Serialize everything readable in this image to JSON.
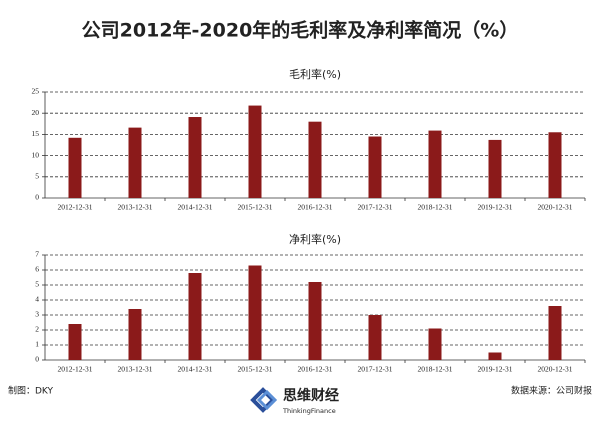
{
  "title": "公司2012年-2020年的毛利率及净利率简况（%）",
  "chart_data": [
    {
      "type": "bar",
      "title": "毛利率(%)",
      "categories": [
        "2012-12-31",
        "2013-12-31",
        "2014-12-31",
        "2015-12-31",
        "2016-12-31",
        "2017-12-31",
        "2018-12-31",
        "2019-12-31",
        "2020-12-31"
      ],
      "values": [
        14.2,
        16.6,
        19.1,
        21.8,
        18.0,
        14.5,
        15.9,
        13.7,
        15.5
      ],
      "color": "#8b1a1a",
      "ylim": [
        0,
        25
      ],
      "yticks": [
        0,
        5,
        10,
        15,
        20,
        25
      ],
      "grid": true
    },
    {
      "type": "bar",
      "title": "净利率(%)",
      "categories": [
        "2012-12-31",
        "2013-12-31",
        "2014-12-31",
        "2015-12-31",
        "2016-12-31",
        "2017-12-31",
        "2018-12-31",
        "2019-12-31",
        "2020-12-31"
      ],
      "values": [
        2.4,
        3.4,
        5.8,
        6.3,
        5.2,
        3.0,
        2.1,
        0.5,
        3.6
      ],
      "color": "#8b1a1a",
      "ylim": [
        0,
        7
      ],
      "yticks": [
        0,
        1,
        2,
        3,
        4,
        5,
        6,
        7
      ],
      "grid": true
    }
  ],
  "footer": {
    "maker": "制图：DKY",
    "brand": "思维财经",
    "brand_en": "ThinkingFinance",
    "source": "数据来源：公司财报"
  }
}
